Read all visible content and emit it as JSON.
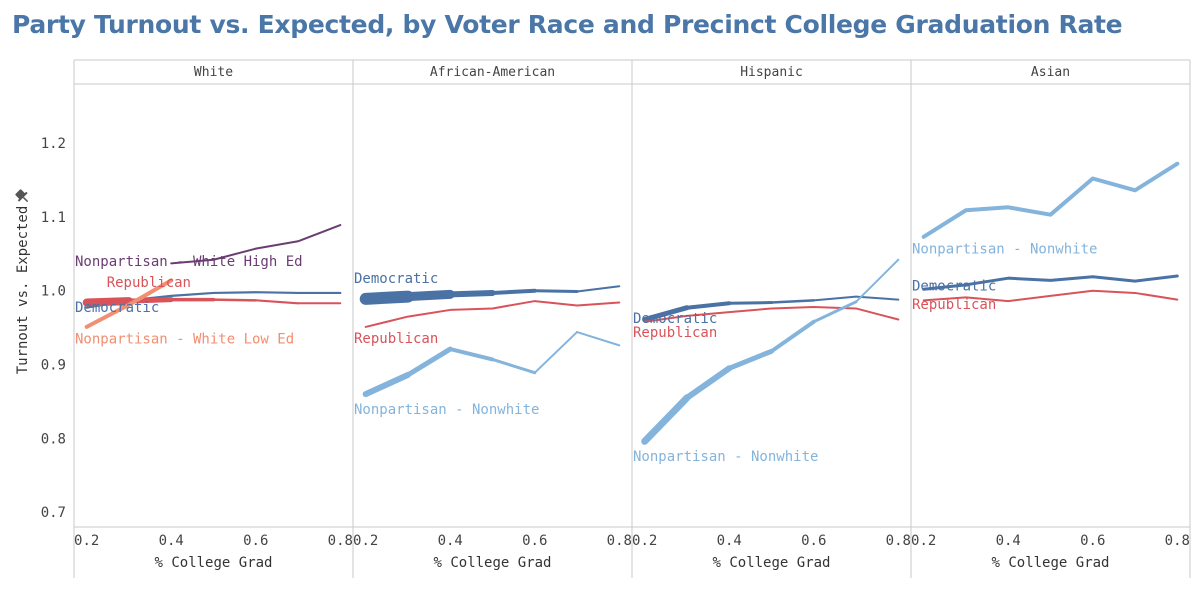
{
  "title": "Party Turnout vs. Expected, by Voter Race and Precinct College Graduation Rate",
  "chart_data": {
    "type": "line",
    "xlabel": "% College Grad",
    "ylabel": "Turnout vs. Expected",
    "ylim": [
      0.68,
      1.28
    ],
    "xlim": [
      0.17,
      0.83
    ],
    "yticks": [
      "0.7",
      "0.8",
      "0.9",
      "1.0",
      "1.1",
      "1.2"
    ],
    "xticks": [
      "0.2",
      "0.4",
      "0.6",
      "0.8"
    ],
    "grid": false,
    "colors": {
      "democratic": "#4a72a4",
      "republican": "#d9535a",
      "nonpartisan_high": "#6b3d73",
      "nonpartisan_low": "#f08f72",
      "nonpartisan_nonwhite": "#84b4dc"
    },
    "panels": [
      {
        "name": "White",
        "series": [
          {
            "name": "Democratic",
            "color": "#4a72a4",
            "width": 2.2,
            "x": [
              0.2,
              0.3,
              0.4,
              0.5,
              0.6,
              0.7,
              0.8
            ],
            "y": [
              0.977,
              0.987,
              0.993,
              0.997,
              0.998,
              0.997,
              0.997
            ]
          },
          {
            "name": "Republican",
            "color": "#d9535a",
            "width": 2,
            "widths": [
              8,
              5,
              3.5,
              2.5,
              2.2,
              2
            ],
            "x": [
              0.2,
              0.3,
              0.4,
              0.5,
              0.6,
              0.7,
              0.8
            ],
            "y": [
              0.984,
              0.986,
              0.988,
              0.988,
              0.987,
              0.983,
              0.983
            ]
          },
          {
            "name": "Nonpartisan - White High Ed",
            "color": "#6b3d73",
            "width": 2,
            "x": [
              0.4,
              0.5,
              0.6,
              0.7,
              0.8
            ],
            "y": [
              1.037,
              1.042,
              1.057,
              1.067,
              1.089
            ]
          },
          {
            "name": "Nonpartisan - White Low Ed",
            "color": "#f08f72",
            "width": 4,
            "x": [
              0.2,
              0.3,
              0.4
            ],
            "y": [
              0.951,
              0.981,
              1.014
            ]
          }
        ],
        "labels": [
          {
            "text": "Nonpartisan - White High Ed",
            "color": "#6b3d73",
            "x": 0.17,
            "y": 1.04
          },
          {
            "text": "Republican",
            "color": "#d9535a",
            "x": 0.245,
            "y": 1.012
          },
          {
            "text": "Democratic",
            "color": "#4a72a4",
            "x": 0.17,
            "y": 0.978
          },
          {
            "text": "Nonpartisan - White Low Ed",
            "color": "#f08f72",
            "x": 0.17,
            "y": 0.935
          }
        ]
      },
      {
        "name": "African-American",
        "series": [
          {
            "name": "Democratic",
            "color": "#4a72a4",
            "width": 2,
            "widths": [
              12,
              9,
              6,
              4,
              3,
              2
            ],
            "x": [
              0.2,
              0.3,
              0.4,
              0.5,
              0.6,
              0.7,
              0.8
            ],
            "y": [
              0.989,
              0.992,
              0.995,
              0.997,
              1.0,
              0.999,
              1.006
            ]
          },
          {
            "name": "Republican",
            "color": "#d9535a",
            "width": 2,
            "x": [
              0.2,
              0.3,
              0.4,
              0.5,
              0.6,
              0.7,
              0.8
            ],
            "y": [
              0.951,
              0.965,
              0.974,
              0.976,
              0.986,
              0.98,
              0.984
            ]
          },
          {
            "name": "Nonpartisan - Nonwhite",
            "color": "#84b4dc",
            "width": 2,
            "widths": [
              6,
              5,
              4,
              3,
              2,
              2
            ],
            "x": [
              0.2,
              0.3,
              0.4,
              0.5,
              0.6,
              0.7,
              0.8
            ],
            "y": [
              0.86,
              0.886,
              0.921,
              0.907,
              0.889,
              0.944,
              0.926
            ]
          }
        ],
        "labels": [
          {
            "text": "Democratic",
            "color": "#4a72a4",
            "x": 0.17,
            "y": 1.017
          },
          {
            "text": "Republican",
            "color": "#d9535a",
            "x": 0.17,
            "y": 0.936
          },
          {
            "text": "Nonpartisan - Nonwhite",
            "color": "#84b4dc",
            "x": 0.17,
            "y": 0.84
          }
        ]
      },
      {
        "name": "Hispanic",
        "series": [
          {
            "name": "Democratic",
            "color": "#4a72a4",
            "width": 2,
            "widths": [
              5,
              4,
              3,
              2.5,
              2,
              2
            ],
            "x": [
              0.2,
              0.3,
              0.4,
              0.5,
              0.6,
              0.7,
              0.8
            ],
            "y": [
              0.961,
              0.977,
              0.983,
              0.984,
              0.987,
              0.992,
              0.988
            ]
          },
          {
            "name": "Republican",
            "color": "#d9535a",
            "width": 2,
            "x": [
              0.2,
              0.3,
              0.4,
              0.5,
              0.6,
              0.7,
              0.8
            ],
            "y": [
              0.958,
              0.966,
              0.971,
              0.976,
              0.978,
              0.976,
              0.961
            ]
          },
          {
            "name": "Nonpartisan - Nonwhite",
            "color": "#84b4dc",
            "width": 2,
            "widths": [
              7,
              6,
              5,
              4,
              3,
              2
            ],
            "x": [
              0.2,
              0.3,
              0.4,
              0.5,
              0.6,
              0.7,
              0.8
            ],
            "y": [
              0.796,
              0.855,
              0.895,
              0.918,
              0.958,
              0.985,
              1.042
            ]
          }
        ],
        "labels": [
          {
            "text": "Democratic",
            "color": "#4a72a4",
            "x": 0.17,
            "y": 0.963
          },
          {
            "text": "Republican",
            "color": "#d9535a",
            "x": 0.17,
            "y": 0.944
          },
          {
            "text": "Nonpartisan - Nonwhite",
            "color": "#84b4dc",
            "x": 0.17,
            "y": 0.776
          }
        ]
      },
      {
        "name": "Asian",
        "series": [
          {
            "name": "Democratic",
            "color": "#4a72a4",
            "width": 3,
            "x": [
              0.2,
              0.3,
              0.4,
              0.5,
              0.6,
              0.7,
              0.8
            ],
            "y": [
              1.002,
              1.008,
              1.017,
              1.014,
              1.019,
              1.013,
              1.02
            ]
          },
          {
            "name": "Republican",
            "color": "#d9535a",
            "width": 2,
            "x": [
              0.2,
              0.3,
              0.4,
              0.5,
              0.6,
              0.7,
              0.8
            ],
            "y": [
              0.987,
              0.991,
              0.986,
              0.993,
              1.0,
              0.997,
              0.988
            ]
          },
          {
            "name": "Nonpartisan - Nonwhite",
            "color": "#84b4dc",
            "width": 4,
            "x": [
              0.2,
              0.3,
              0.4,
              0.5,
              0.6,
              0.7,
              0.8
            ],
            "y": [
              1.073,
              1.109,
              1.113,
              1.103,
              1.152,
              1.136,
              1.172
            ]
          }
        ],
        "labels": [
          {
            "text": "Nonpartisan - Nonwhite",
            "color": "#84b4dc",
            "x": 0.17,
            "y": 1.057
          },
          {
            "text": "Democratic",
            "color": "#4a72a4",
            "x": 0.17,
            "y": 1.007
          },
          {
            "text": "Republican",
            "color": "#d9535a",
            "x": 0.17,
            "y": 0.982
          }
        ]
      }
    ]
  }
}
